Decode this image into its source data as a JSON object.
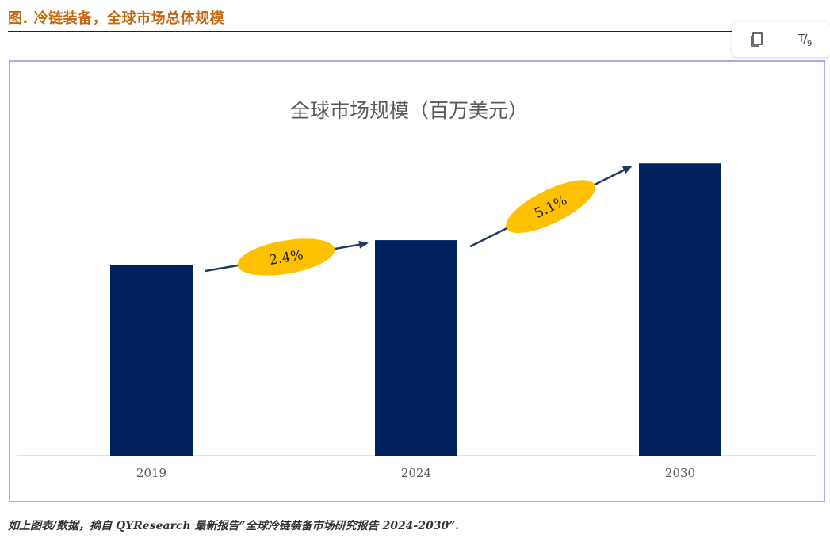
{
  "figure_title": "图.  冷链装备，全球市场总体规模",
  "toolbar": {
    "copy_icon": "copy-icon",
    "translate_icon": "translate-icon",
    "translate_label": "T/9"
  },
  "chart_data": {
    "type": "bar",
    "title": "全球市场规模（百万美元）",
    "categories": [
      "2019",
      "2024",
      "2030"
    ],
    "values": [
      234,
      264,
      358
    ],
    "ylim": [
      0,
      400
    ],
    "grid": false,
    "bar_color": "#002060",
    "growth_annotations": [
      {
        "from": "2019",
        "to": "2024",
        "label": "2.4%"
      },
      {
        "from": "2024",
        "to": "2030",
        "label": "5.1%"
      }
    ],
    "annotation_fill": "#ffc000",
    "arrow_color": "#1f3864"
  },
  "caption": "如上图表/数据，摘自 QYResearch 最新报告“全球冷链装备市场研究报告 2024-2030”."
}
